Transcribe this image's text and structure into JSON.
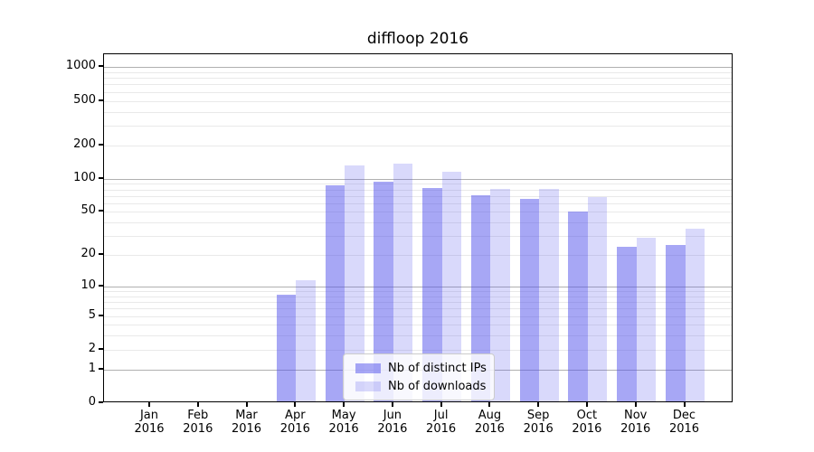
{
  "title": "diffloop 2016",
  "chart_data": {
    "type": "bar",
    "title": "diffloop 2016",
    "categories": [
      "Jan 2016",
      "Feb 2016",
      "Mar 2016",
      "Apr 2016",
      "May 2016",
      "Jun 2016",
      "Jul 2016",
      "Aug 2016",
      "Sep 2016",
      "Oct 2016",
      "Nov 2016",
      "Dec 2016"
    ],
    "series": [
      {
        "name": "Nb of distinct IPs",
        "color": "rgba(80,80,235,0.5)",
        "values": [
          0,
          0,
          0,
          8,
          84,
          91,
          80,
          68,
          63,
          49,
          23,
          24
        ]
      },
      {
        "name": "Nb of downloads",
        "color": "rgba(80,80,235,0.22)",
        "values": [
          0,
          0,
          0,
          11,
          127,
          132,
          112,
          78,
          78,
          66,
          28,
          34
        ]
      }
    ],
    "xlabel": "",
    "ylabel": "",
    "yscale": "log10(1+y)",
    "ylim": [
      0,
      1300
    ],
    "yticks": [
      0,
      1,
      2,
      5,
      10,
      20,
      50,
      100,
      200,
      500,
      1000
    ],
    "major_gridlines": [
      1,
      10,
      100,
      1000
    ],
    "minor_gridlines": [
      2,
      3,
      4,
      5,
      6,
      7,
      8,
      9,
      20,
      30,
      40,
      50,
      60,
      70,
      80,
      90,
      200,
      300,
      400,
      500,
      600,
      700,
      800,
      900
    ],
    "grid": true,
    "legend_position": "lower center"
  },
  "colors": {
    "bar_ips": "rgba(80,80,235,0.5)",
    "bar_downloads": "rgba(80,80,235,0.22)",
    "major_grid": "#b0b0b0",
    "minor_grid": "#e9e9e9",
    "spine": "#000000",
    "text": "#000000",
    "legend_border": "#cccccc",
    "legend_background": "rgba(255,255,255,0.8)",
    "plot_background": "#ffffff"
  }
}
